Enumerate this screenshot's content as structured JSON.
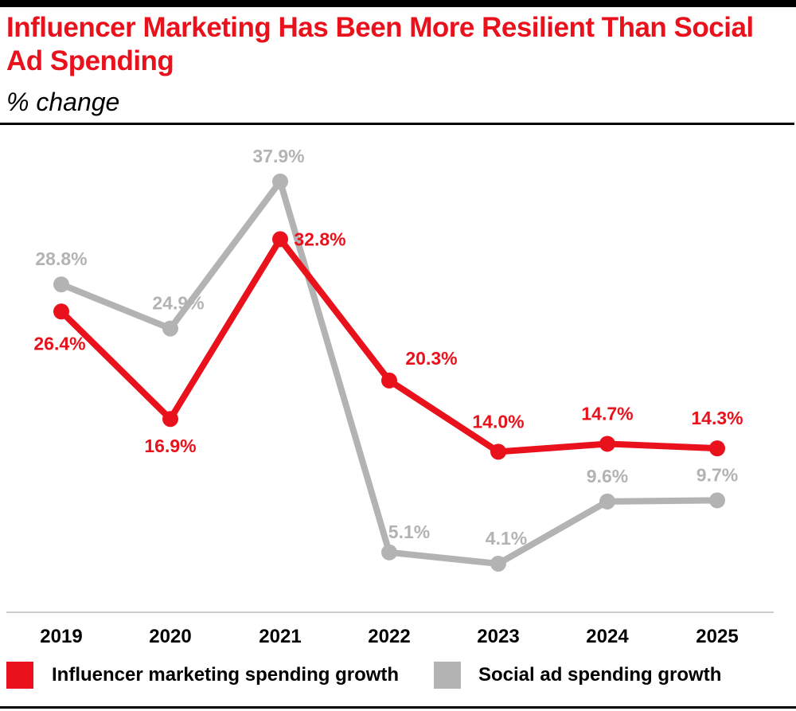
{
  "header": {
    "title": "Influencer Marketing Has Been More Resilient Than Social Ad Spending",
    "subtitle": "% change"
  },
  "colors": {
    "influencer": "#e8111c",
    "social": "#b3b3b3"
  },
  "chart_data": {
    "type": "line",
    "title": "Influencer Marketing Has Been More Resilient Than Social Ad Spending",
    "subtitle": "% change",
    "xlabel": "",
    "ylabel": "% change",
    "categories": [
      "2019",
      "2020",
      "2021",
      "2022",
      "2023",
      "2024",
      "2025"
    ],
    "grid": false,
    "legend_position": "bottom",
    "series": [
      {
        "name": "Influencer marketing spending growth",
        "color": "#e8111c",
        "values": [
          26.4,
          16.9,
          32.8,
          20.3,
          14.0,
          14.7,
          14.3
        ],
        "labels": [
          "26.4%",
          "16.9%",
          "32.8%",
          "20.3%",
          "14.0%",
          "14.7%",
          "14.3%"
        ]
      },
      {
        "name": "Social ad spending growth",
        "color": "#b3b3b3",
        "values": [
          28.8,
          24.9,
          37.9,
          5.1,
          4.1,
          9.6,
          9.7
        ],
        "labels": [
          "28.8%",
          "24.9%",
          "37.9%",
          "5.1%",
          "4.1%",
          "9.6%",
          "9.7%"
        ]
      }
    ]
  },
  "legend": [
    {
      "label": "Influencer marketing spending growth",
      "color": "#e8111c"
    },
    {
      "label": "Social ad spending growth",
      "color": "#b3b3b3"
    }
  ]
}
